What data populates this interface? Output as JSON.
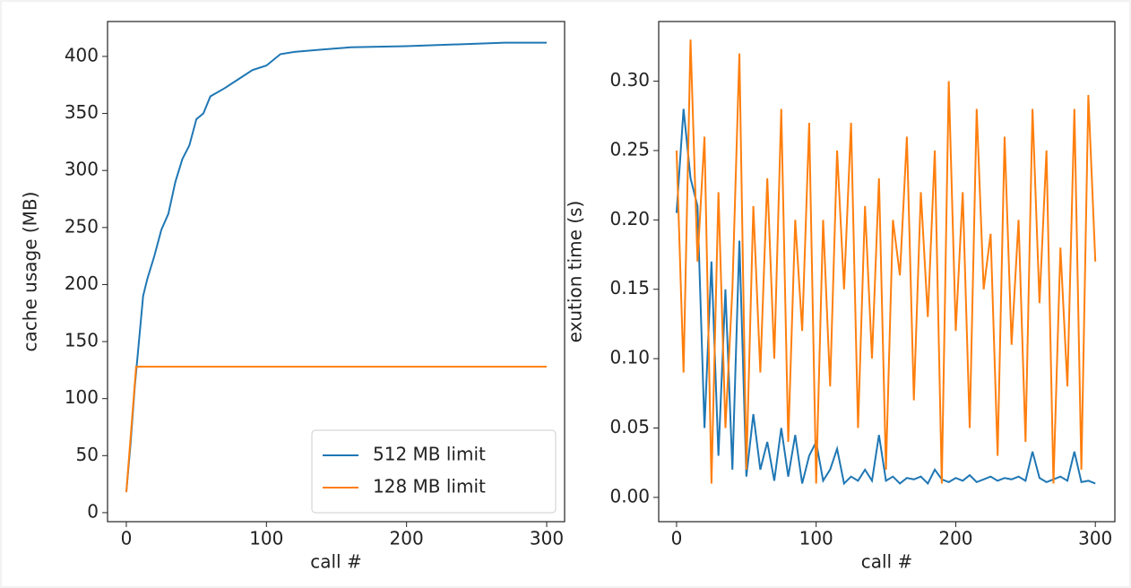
{
  "chart_data": [
    {
      "type": "line",
      "xlabel": "call #",
      "ylabel": "cache usage (MB)",
      "xlim": [
        -13.4,
        312.8
      ],
      "ylim": [
        -7.9,
        430.6
      ],
      "xticks": [
        0,
        100,
        200,
        300
      ],
      "yticks": [
        0,
        50,
        100,
        150,
        200,
        250,
        300,
        350,
        400
      ],
      "legend": "lower right",
      "series": [
        {
          "name": "512 MB limit",
          "color": "#1f77b4",
          "x": [
            0,
            3,
            6,
            9,
            12,
            15,
            20,
            25,
            30,
            35,
            40,
            45,
            50,
            55,
            60,
            70,
            80,
            90,
            100,
            110,
            120,
            140,
            160,
            200,
            270,
            300
          ],
          "values": [
            18,
            60,
            110,
            150,
            190,
            205,
            225,
            248,
            262,
            290,
            310,
            322,
            345,
            350,
            365,
            372,
            380,
            388,
            392,
            402,
            404,
            406,
            408,
            409,
            412,
            412
          ]
        },
        {
          "name": "128 MB limit",
          "color": "#ff7f0e",
          "x": [
            0,
            7,
            300
          ],
          "values": [
            18,
            128,
            128
          ]
        }
      ]
    },
    {
      "type": "line",
      "xlabel": "call #",
      "ylabel": "exution time (s)",
      "xlim": [
        -12.8,
        314
      ],
      "ylim": [
        -0.0175,
        0.343
      ],
      "xticks": [
        0,
        100,
        200,
        300
      ],
      "yticks": [
        {
          "value": 0,
          "label": "0.00"
        },
        {
          "value": 0.05,
          "label": "0.05"
        },
        {
          "value": 0.1,
          "label": "0.10"
        },
        {
          "value": 0.15,
          "label": "0.15"
        },
        {
          "value": 0.2,
          "label": "0.20"
        },
        {
          "value": 0.25,
          "label": "0.25"
        },
        {
          "value": 0.3,
          "label": "0.30"
        }
      ],
      "series": [
        {
          "color": "#1f77b4",
          "x": [
            0,
            5,
            10,
            15,
            20,
            25,
            30,
            35,
            40,
            45,
            50,
            55,
            60,
            65,
            70,
            75,
            80,
            85,
            90,
            95,
            100,
            105,
            110,
            115,
            120,
            125,
            130,
            135,
            140,
            145,
            150,
            155,
            160,
            165,
            170,
            175,
            180,
            185,
            190,
            195,
            200,
            205,
            210,
            215,
            220,
            225,
            230,
            235,
            240,
            245,
            250,
            255,
            260,
            265,
            270,
            275,
            280,
            285,
            290,
            295,
            300
          ],
          "values": [
            0.205,
            0.28,
            0.23,
            0.21,
            0.05,
            0.17,
            0.03,
            0.15,
            0.02,
            0.185,
            0.015,
            0.06,
            0.02,
            0.04,
            0.012,
            0.05,
            0.015,
            0.045,
            0.01,
            0.03,
            0.04,
            0.012,
            0.02,
            0.035,
            0.01,
            0.015,
            0.012,
            0.02,
            0.012,
            0.045,
            0.012,
            0.015,
            0.01,
            0.014,
            0.013,
            0.015,
            0.01,
            0.02,
            0.013,
            0.011,
            0.014,
            0.012,
            0.016,
            0.011,
            0.013,
            0.015,
            0.012,
            0.014,
            0.013,
            0.015,
            0.012,
            0.033,
            0.014,
            0.011,
            0.013,
            0.015,
            0.012,
            0.033,
            0.011,
            0.012,
            0.01
          ]
        },
        {
          "color": "#ff7f0e",
          "x": [
            0,
            5,
            10,
            15,
            20,
            25,
            30,
            35,
            40,
            45,
            50,
            55,
            60,
            65,
            70,
            75,
            80,
            85,
            90,
            95,
            100,
            105,
            110,
            115,
            120,
            125,
            130,
            135,
            140,
            145,
            150,
            155,
            160,
            165,
            170,
            175,
            180,
            185,
            190,
            195,
            200,
            205,
            210,
            215,
            220,
            225,
            230,
            235,
            240,
            245,
            250,
            255,
            260,
            265,
            270,
            275,
            280,
            285,
            290,
            295,
            300
          ],
          "values": [
            0.25,
            0.09,
            0.33,
            0.17,
            0.26,
            0.01,
            0.22,
            0.05,
            0.15,
            0.32,
            0.02,
            0.21,
            0.09,
            0.23,
            0.1,
            0.28,
            0.04,
            0.2,
            0.12,
            0.27,
            0.01,
            0.2,
            0.08,
            0.25,
            0.15,
            0.27,
            0.05,
            0.21,
            0.1,
            0.23,
            0.02,
            0.2,
            0.16,
            0.26,
            0.07,
            0.22,
            0.13,
            0.25,
            0.01,
            0.3,
            0.12,
            0.22,
            0.05,
            0.28,
            0.15,
            0.19,
            0.03,
            0.26,
            0.11,
            0.2,
            0.04,
            0.28,
            0.14,
            0.25,
            0.01,
            0.18,
            0.08,
            0.28,
            0.02,
            0.29,
            0.17
          ]
        }
      ]
    }
  ]
}
